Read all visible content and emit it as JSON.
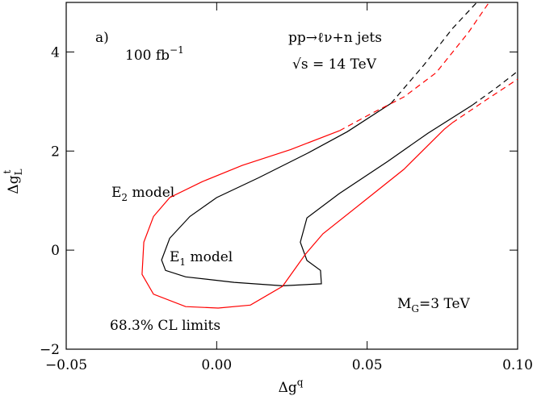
{
  "chart_data": {
    "type": "line",
    "ylabel": {
      "base": "Δg",
      "sub": "L",
      "sup": "t"
    },
    "xlabel": {
      "base": "Δg",
      "sup": "q"
    },
    "xlim": [
      -0.05,
      0.1
    ],
    "ylim": [
      -2,
      5
    ],
    "xticks": [
      {
        "value": -0.05,
        "label": "−0.05"
      },
      {
        "value": 0,
        "label": "0.00"
      },
      {
        "value": 0.05,
        "label": "0.05"
      },
      {
        "value": 0.1,
        "label": "0.10"
      }
    ],
    "yticks": [
      {
        "value": -2,
        "label": "−2"
      },
      0,
      2,
      4
    ],
    "annotations": {
      "panel": "a)",
      "lumi": {
        "base": "100 fb",
        "sup": "−1"
      },
      "process": "pp→ℓν+n jets",
      "energy": "√s = 14 TeV",
      "e2": {
        "base": "E",
        "sub": "2",
        "rest": " model"
      },
      "e1": {
        "base": "E",
        "sub": "1",
        "rest": " model"
      },
      "cl": "68.3% CL limits",
      "mass": {
        "base": "M",
        "sub": "G",
        "rest": "=3 TeV"
      }
    },
    "series": [
      {
        "color": "#000000",
        "dashed": false,
        "x": [
          0.0579,
          0.0434,
          0.03,
          0.0139,
          0.0,
          -0.0089,
          -0.0156,
          -0.0183,
          -0.017,
          -0.0103,
          0.0058,
          0.0219,
          0.0348,
          0.0345,
          0.03,
          0.0278,
          0.03,
          0.0407,
          0.0568,
          0.0702,
          0.085
        ],
        "values": [
          2.96,
          2.39,
          1.95,
          1.46,
          1.06,
          0.68,
          0.24,
          -0.2,
          -0.41,
          -0.54,
          -0.65,
          -0.72,
          -0.68,
          -0.41,
          -0.21,
          0.16,
          0.65,
          1.14,
          1.79,
          2.36,
          2.93
        ]
      },
      {
        "color": "#000000",
        "dashed": true,
        "x": [
          0.0579,
          0.0689,
          0.0783,
          0.0863,
          null,
          0.085,
          0.093,
          0.1
        ],
        "values": [
          2.96,
          3.74,
          4.47,
          4.99,
          null,
          2.93,
          3.28,
          3.61
        ]
      },
      {
        "color": "#ff0000",
        "dashed": false,
        "x": [
          0.0408,
          0.0246,
          0.0085,
          -0.0049,
          -0.0156,
          -0.021,
          -0.0242,
          -0.0248,
          -0.021,
          -0.0103,
          0.0005,
          0.0112,
          0.0219,
          0.0295,
          0.0353,
          0.0488,
          0.0622,
          0.0756,
          0.0783
        ],
        "values": [
          2.41,
          2.03,
          1.71,
          1.38,
          1.06,
          0.68,
          0.16,
          -0.49,
          -0.89,
          -1.14,
          -1.17,
          -1.11,
          -0.73,
          -0.08,
          0.33,
          0.98,
          1.63,
          2.44,
          2.57
        ]
      },
      {
        "color": "#ff0000",
        "dashed": true,
        "x": [
          0.0408,
          0.0515,
          0.0622,
          0.0729,
          0.0836,
          0.0904,
          null,
          0.0783,
          0.089,
          0.1
        ],
        "values": [
          2.41,
          2.76,
          3.09,
          3.58,
          4.39,
          4.99,
          null,
          2.57,
          3.01,
          3.45
        ]
      }
    ]
  }
}
